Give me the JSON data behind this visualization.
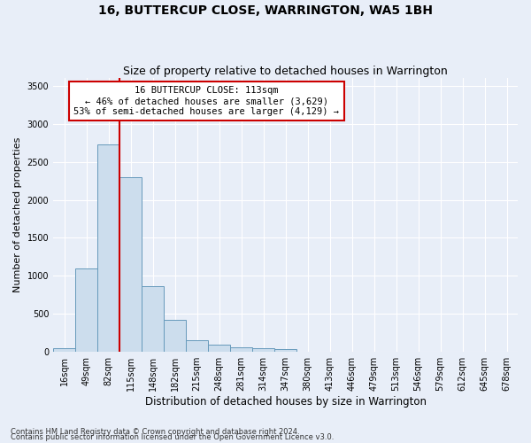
{
  "title": "16, BUTTERCUP CLOSE, WARRINGTON, WA5 1BH",
  "subtitle": "Size of property relative to detached houses in Warrington",
  "xlabel": "Distribution of detached houses by size in Warrington",
  "ylabel": "Number of detached properties",
  "footnote1": "Contains HM Land Registry data © Crown copyright and database right 2024.",
  "footnote2": "Contains public sector information licensed under the Open Government Licence v3.0.",
  "bin_labels": [
    "16sqm",
    "49sqm",
    "82sqm",
    "115sqm",
    "148sqm",
    "182sqm",
    "215sqm",
    "248sqm",
    "281sqm",
    "314sqm",
    "347sqm",
    "380sqm",
    "413sqm",
    "446sqm",
    "479sqm",
    "513sqm",
    "546sqm",
    "579sqm",
    "612sqm",
    "645sqm",
    "678sqm"
  ],
  "bar_values": [
    50,
    1100,
    2730,
    2300,
    870,
    420,
    155,
    100,
    60,
    50,
    40,
    5,
    5,
    5,
    3,
    2,
    1,
    1,
    0,
    0,
    0
  ],
  "bar_color": "#ccdded",
  "bar_edge_color": "#6699bb",
  "vline_x": 2.5,
  "vline_color": "#cc0000",
  "annotation_text": "16 BUTTERCUP CLOSE: 113sqm\n← 46% of detached houses are smaller (3,629)\n53% of semi-detached houses are larger (4,129) →",
  "annotation_box_color": "#ffffff",
  "annotation_box_edge": "#cc0000",
  "ylim": [
    0,
    3600
  ],
  "yticks": [
    0,
    500,
    1000,
    1500,
    2000,
    2500,
    3000,
    3500
  ],
  "background_color": "#e8eef8",
  "plot_background": "#e8eef8",
  "grid_color": "#ffffff",
  "title_fontsize": 10,
  "subtitle_fontsize": 9,
  "tick_fontsize": 7,
  "ylabel_fontsize": 8,
  "xlabel_fontsize": 8.5,
  "footnote_fontsize": 6
}
